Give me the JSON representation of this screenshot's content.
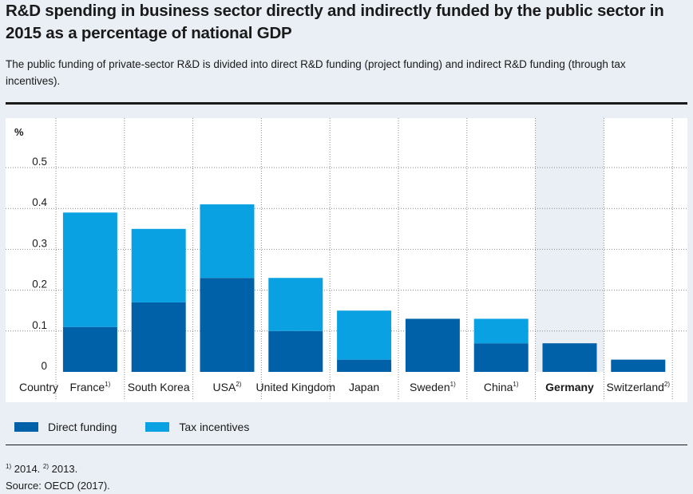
{
  "title": "R&D spending in business sector directly and indirectly funded by the public sector in 2015 as a percentage of national GDP",
  "subtitle": "The public funding of private-sector R&D is divided into direct R&D funding (project funding) and indirect R&D funding (through tax incentives).",
  "colors": {
    "direct": "#0060a8",
    "tax": "#0aa1e2",
    "highlight": "#e9eff4",
    "grid": "#8a8a8a"
  },
  "chart_data": {
    "type": "bar",
    "stacked": true,
    "ylabel": "%",
    "xlabel": "Country",
    "ylim": [
      0,
      0.6
    ],
    "yticks": [
      "0",
      "0.1",
      "0.2",
      "0.3",
      "0.4",
      "0.5"
    ],
    "grid": true,
    "highlight_category": "Germany",
    "categories": [
      {
        "name": "France",
        "note": "1)"
      },
      {
        "name": "South Korea",
        "note": ""
      },
      {
        "name": "USA",
        "note": "2)"
      },
      {
        "name": "United Kingdom",
        "note": ""
      },
      {
        "name": "Japan",
        "note": ""
      },
      {
        "name": "Sweden",
        "note": "1)"
      },
      {
        "name": "China",
        "note": "1)"
      },
      {
        "name": "Germany",
        "note": ""
      },
      {
        "name": "Switzerland",
        "note": "2)"
      }
    ],
    "series": [
      {
        "name": "Direct funding",
        "values": [
          0.11,
          0.17,
          0.23,
          0.1,
          0.03,
          0.13,
          0.07,
          0.07,
          0.03
        ]
      },
      {
        "name": "Tax incentives",
        "values": [
          0.28,
          0.18,
          0.18,
          0.13,
          0.12,
          0.0,
          0.06,
          0.0,
          0.0
        ]
      }
    ]
  },
  "footnotes": {
    "n1_mark": "1)",
    "n1_text": "2014.",
    "n2_mark": "2)",
    "n2_text": "2013.",
    "source": "Source: OECD (2017)."
  }
}
